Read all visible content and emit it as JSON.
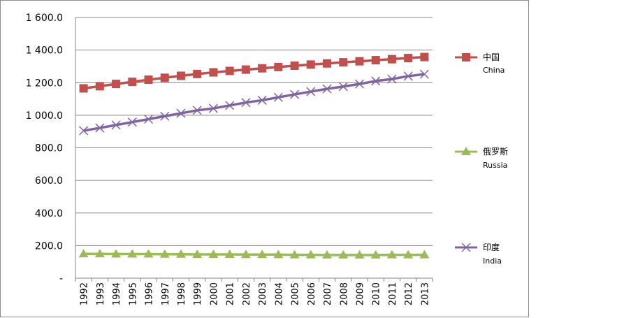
{
  "chart_data": {
    "type": "line",
    "x": [
      "1992",
      "1993",
      "1994",
      "1995",
      "1996",
      "1997",
      "1998",
      "1999",
      "2000",
      "2001",
      "2002",
      "2003",
      "2004",
      "2005",
      "2006",
      "2007",
      "2008",
      "2009",
      "2010",
      "2011",
      "2012",
      "2013"
    ],
    "ylim": [
      0,
      1600
    ],
    "yticks": [
      "-",
      "200.0",
      "400.0",
      "600.0",
      "800.0",
      "1 000.0",
      "1 200.0",
      "1 400.0",
      "1 600.0"
    ],
    "grid": true,
    "legend_position": "right",
    "series": [
      {
        "name": "中国",
        "name_en": "China",
        "color": "#c0504d",
        "marker": "square",
        "values": [
          1165,
          1178,
          1192,
          1205,
          1218,
          1230,
          1242,
          1253,
          1263,
          1272,
          1280,
          1288,
          1296,
          1304,
          1311,
          1318,
          1325,
          1331,
          1338,
          1344,
          1351,
          1357
        ]
      },
      {
        "name": "俄罗斯",
        "name_en": "Russia",
        "color": "#9bbb59",
        "marker": "triangle",
        "values": [
          149,
          149,
          148,
          148,
          148,
          147,
          147,
          146,
          146,
          146,
          145,
          145,
          144,
          143,
          143,
          142,
          142,
          142,
          142,
          143,
          143,
          143
        ]
      },
      {
        "name": "印度",
        "name_en": "India",
        "color": "#8064a2",
        "marker": "x",
        "values": [
          905,
          922,
          940,
          958,
          976,
          994,
          1012,
          1030,
          1042,
          1060,
          1078,
          1092,
          1110,
          1128,
          1145,
          1162,
          1176,
          1192,
          1210,
          1222,
          1240,
          1252
        ]
      }
    ]
  }
}
